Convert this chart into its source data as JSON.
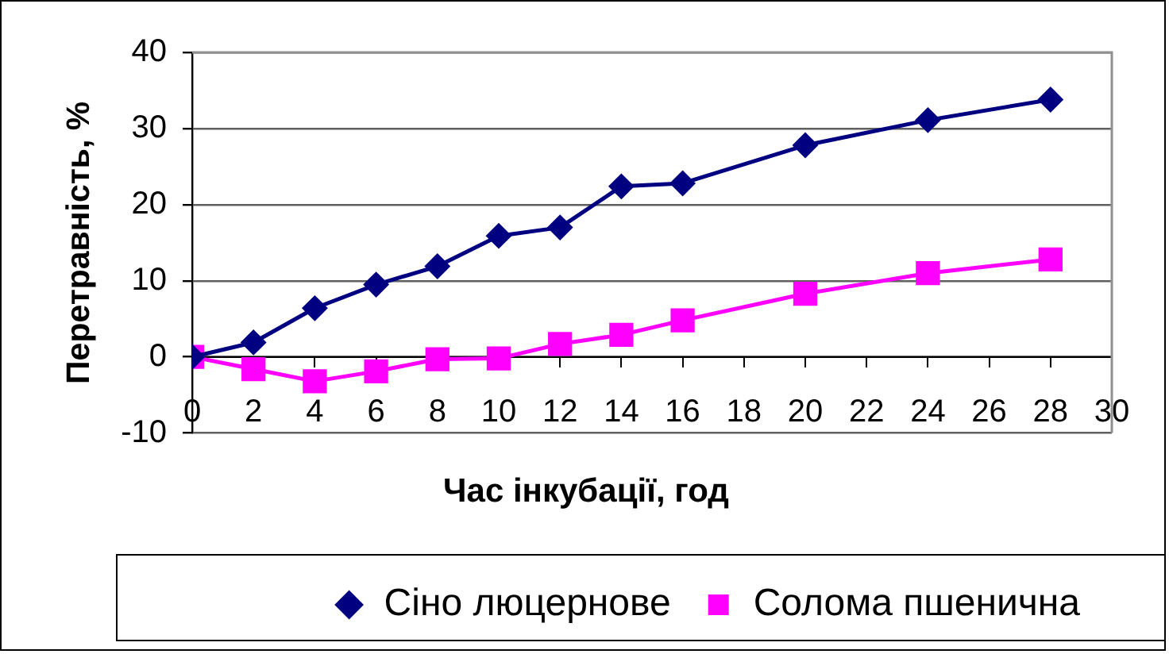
{
  "chart_data": {
    "type": "line",
    "xlabel": "Час інкубації, год",
    "ylabel": "Перетравність, %",
    "x": [
      0,
      2,
      4,
      6,
      8,
      10,
      12,
      14,
      16,
      20,
      24,
      28
    ],
    "series": [
      {
        "name": "Сіно люцернове",
        "color": "#000080",
        "marker": "diamond",
        "values": [
          0,
          1.9,
          6.4,
          9.5,
          11.9,
          15.9,
          17,
          22.4,
          22.8,
          27.8,
          31.1,
          33.8
        ]
      },
      {
        "name": "Солома пшенична",
        "color": "#ff00ff",
        "marker": "square",
        "values": [
          0,
          -1.6,
          -3.2,
          -1.9,
          -0.3,
          -0.2,
          1.7,
          2.9,
          4.8,
          8.3,
          11,
          12.8
        ]
      }
    ],
    "xlim": [
      0,
      30
    ],
    "xticks": [
      0,
      2,
      4,
      6,
      8,
      10,
      12,
      14,
      16,
      18,
      20,
      22,
      24,
      26,
      28,
      30
    ],
    "ylim": [
      -10,
      40
    ],
    "yticks": [
      -10,
      0,
      10,
      20,
      30,
      40
    ],
    "grid": "y",
    "legend": "bottom",
    "line_style": "solid"
  }
}
